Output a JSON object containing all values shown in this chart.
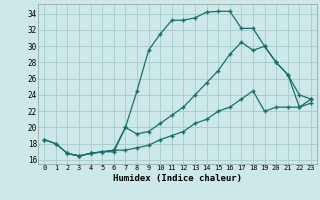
{
  "xlabel": "Humidex (Indice chaleur)",
  "bg_color": "#cce8e8",
  "grid_color": "#aacfcf",
  "line_color": "#1a6e6e",
  "x_ticks": [
    0,
    1,
    2,
    3,
    4,
    5,
    6,
    7,
    8,
    9,
    10,
    11,
    12,
    13,
    14,
    15,
    16,
    17,
    18,
    19,
    20,
    21,
    22,
    23
  ],
  "y_ticks": [
    16,
    18,
    20,
    22,
    24,
    26,
    28,
    30,
    32,
    34
  ],
  "xlim": [
    -0.5,
    23.5
  ],
  "ylim": [
    15.5,
    35.2
  ],
  "line1_x": [
    0,
    1,
    2,
    3,
    4,
    5,
    6,
    7,
    8,
    9,
    10,
    11,
    12,
    13,
    14,
    15,
    16,
    17,
    18,
    19,
    20,
    21,
    22,
    23
  ],
  "line1_y": [
    18.5,
    18.0,
    16.8,
    16.5,
    16.8,
    17.0,
    17.0,
    20.0,
    24.5,
    29.5,
    31.5,
    33.2,
    33.2,
    33.5,
    34.2,
    34.3,
    34.3,
    32.2,
    32.2,
    30.0,
    28.0,
    26.5,
    24.0,
    23.5
  ],
  "line2_x": [
    0,
    1,
    2,
    3,
    4,
    5,
    6,
    7,
    8,
    9,
    10,
    11,
    12,
    13,
    14,
    15,
    16,
    17,
    18,
    19,
    20,
    21,
    22,
    23
  ],
  "line2_y": [
    18.5,
    18.0,
    16.8,
    16.5,
    16.8,
    17.0,
    17.2,
    20.0,
    19.2,
    19.5,
    20.5,
    21.5,
    22.5,
    24.0,
    25.5,
    27.0,
    29.0,
    30.5,
    29.5,
    30.0,
    28.0,
    26.5,
    22.5,
    23.5
  ],
  "line3_x": [
    2,
    3,
    4,
    5,
    6,
    7,
    8,
    9,
    10,
    11,
    12,
    13,
    14,
    15,
    16,
    17,
    18,
    19,
    20,
    21,
    22,
    23
  ],
  "line3_y": [
    16.8,
    16.5,
    16.8,
    17.0,
    17.2,
    17.2,
    17.5,
    17.8,
    18.5,
    19.0,
    19.5,
    20.5,
    21.0,
    22.0,
    22.5,
    23.5,
    24.5,
    22.0,
    22.5,
    22.5,
    22.5,
    23.0
  ]
}
